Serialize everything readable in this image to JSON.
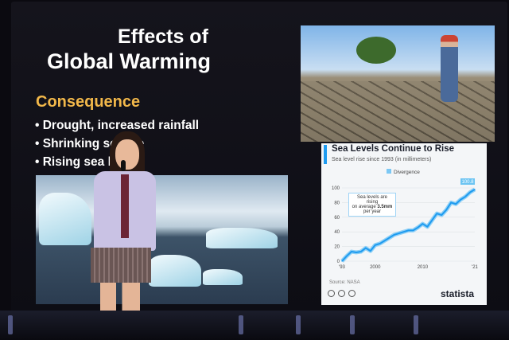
{
  "slide": {
    "title_line1": "Effects of",
    "title_line2": "Global Warming",
    "subtitle": "Consequence",
    "bullets": [
      "Drought, increased rainfall",
      "Shrinking sea ice",
      "Rising sea level"
    ],
    "title_color": "#ffffff",
    "subtitle_color": "#f2b84a"
  },
  "chart_data": {
    "type": "area",
    "title": "Sea Levels Continue to Rise",
    "subtitle": "Sea level rise since 1993 (in millimeters)",
    "legend": [
      "Divergence"
    ],
    "x": [
      1993,
      1994,
      1995,
      1996,
      1997,
      1998,
      1999,
      2000,
      2001,
      2002,
      2003,
      2004,
      2005,
      2006,
      2007,
      2008,
      2009,
      2010,
      2011,
      2012,
      2013,
      2014,
      2015,
      2016,
      2017,
      2018,
      2019,
      2020,
      2021
    ],
    "values": [
      0,
      7,
      13,
      12,
      13,
      18,
      14,
      22,
      24,
      28,
      32,
      36,
      38,
      40,
      42,
      42,
      46,
      51,
      47,
      56,
      65,
      63,
      70,
      80,
      78,
      84,
      88,
      94,
      98
    ],
    "x_tick_labels": [
      "'93",
      "2000",
      "2010",
      "'21"
    ],
    "y_tick_labels": [
      "0",
      "20",
      "40",
      "60",
      "80",
      "100"
    ],
    "ylim": [
      0,
      100
    ],
    "end_label": "100.8",
    "annotation_parts": [
      "Sea levels are rising",
      "on average ",
      "3.5mm",
      "per year"
    ],
    "source": "Source: NASA",
    "brand": "statista",
    "series_color": "#1e9bf0",
    "grid": true
  }
}
